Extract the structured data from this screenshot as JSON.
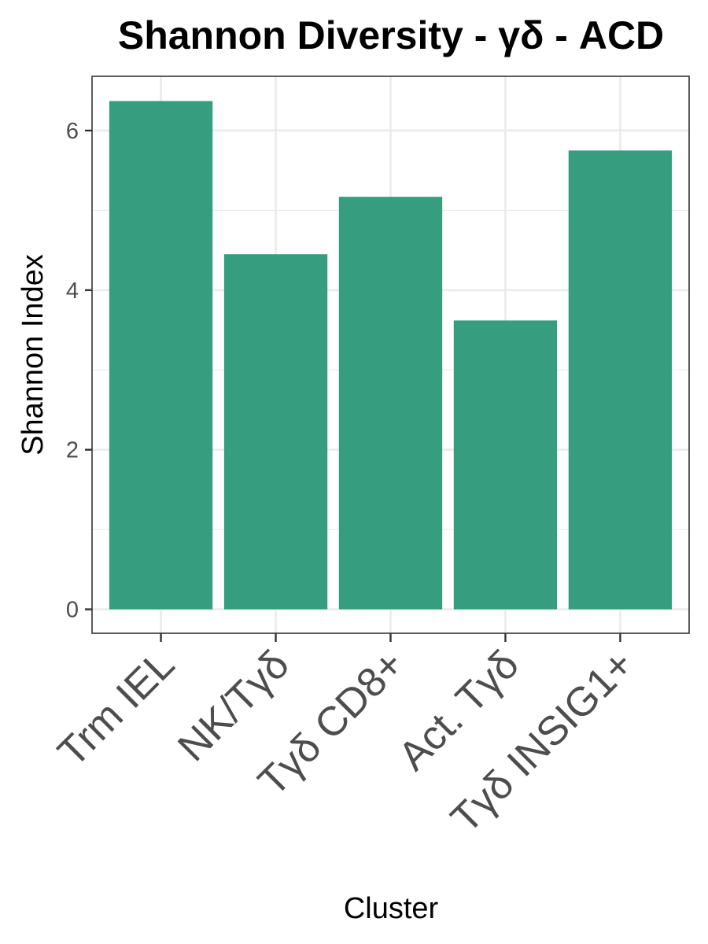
{
  "chart_data": {
    "type": "bar",
    "title": "Shannon Diversity - γδ - ACD",
    "xlabel": "Cluster",
    "ylabel": "Shannon Index",
    "categories": [
      "Trm IEL",
      "NK/Tγδ",
      "Tγδ CD8+",
      "Act. Tγδ",
      "Tγδ INSIG1+"
    ],
    "values": [
      6.37,
      4.45,
      5.17,
      3.62,
      5.75
    ],
    "ylim": [
      -0.3,
      6.68
    ],
    "yticks": [
      0,
      2,
      4,
      6
    ],
    "grid": true,
    "bar_color": "#369D7F",
    "legend": "none"
  }
}
